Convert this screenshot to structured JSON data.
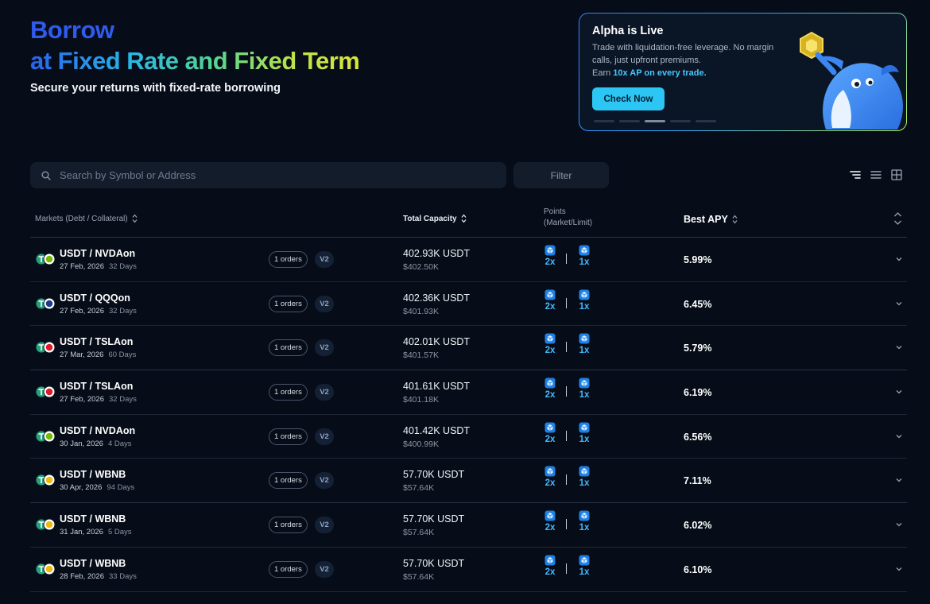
{
  "hero": {
    "title_line1": "Borrow",
    "title_line2": "at Fixed Rate and Fixed Term",
    "subtitle": "Secure your returns with fixed-rate borrowing"
  },
  "promo": {
    "title": "Alpha is Live",
    "text": "Trade with liquidation-free leverage. No margin calls, just upfront premiums.",
    "earn_prefix": "Earn ",
    "earn_highlight": "10x AP on every trade.",
    "button_label": "Check Now",
    "active_slide": 3,
    "slide_count": 5
  },
  "toolbar": {
    "search_placeholder": "Search by Symbol or Address",
    "filter_label": "Filter"
  },
  "table": {
    "headers": {
      "markets": "Markets (Debt / Collateral)",
      "capacity": "Total Capacity",
      "points_line1": "Points",
      "points_line2": "(Market/Limit)",
      "apy": "Best APY"
    },
    "rows": [
      {
        "pair": "USDT / NVDAon",
        "date": "27 Feb, 2026",
        "days": "32 Days",
        "orders": "1 orders",
        "version": "V2",
        "capacity": "402.93K USDT",
        "capacity_usd": "$402.50K",
        "points_market": "2x",
        "points_limit": "1x",
        "apy": "5.99%",
        "collateral_icon": "nvidia-icon",
        "collateral_color": "#76b900"
      },
      {
        "pair": "USDT / QQQon",
        "date": "27 Feb, 2026",
        "days": "32 Days",
        "orders": "1 orders",
        "version": "V2",
        "capacity": "402.36K USDT",
        "capacity_usd": "$401.93K",
        "points_market": "2x",
        "points_limit": "1x",
        "apy": "6.45%",
        "collateral_icon": "qqq-icon",
        "collateral_color": "#1f3a8a"
      },
      {
        "pair": "USDT / TSLAon",
        "date": "27 Mar, 2026",
        "days": "60 Days",
        "orders": "1 orders",
        "version": "V2",
        "capacity": "402.01K USDT",
        "capacity_usd": "$401.57K",
        "points_market": "2x",
        "points_limit": "1x",
        "apy": "5.79%",
        "collateral_icon": "tesla-icon",
        "collateral_color": "#d91e2a"
      },
      {
        "pair": "USDT / TSLAon",
        "date": "27 Feb, 2026",
        "days": "32 Days",
        "orders": "1 orders",
        "version": "V2",
        "capacity": "401.61K USDT",
        "capacity_usd": "$401.18K",
        "points_market": "2x",
        "points_limit": "1x",
        "apy": "6.19%",
        "collateral_icon": "tesla-icon",
        "collateral_color": "#d91e2a"
      },
      {
        "pair": "USDT / NVDAon",
        "date": "30 Jan, 2026",
        "days": "4 Days",
        "orders": "1 orders",
        "version": "V2",
        "capacity": "401.42K USDT",
        "capacity_usd": "$400.99K",
        "points_market": "2x",
        "points_limit": "1x",
        "apy": "6.56%",
        "collateral_icon": "nvidia-icon",
        "collateral_color": "#76b900"
      },
      {
        "pair": "USDT / WBNB",
        "date": "30 Apr, 2026",
        "days": "94 Days",
        "orders": "1 orders",
        "version": "V2",
        "capacity": "57.70K USDT",
        "capacity_usd": "$57.64K",
        "points_market": "2x",
        "points_limit": "1x",
        "apy": "7.11%",
        "collateral_icon": "bnb-icon",
        "collateral_color": "#f0b90b"
      },
      {
        "pair": "USDT / WBNB",
        "date": "31 Jan, 2026",
        "days": "5 Days",
        "orders": "1 orders",
        "version": "V2",
        "capacity": "57.70K USDT",
        "capacity_usd": "$57.64K",
        "points_market": "2x",
        "points_limit": "1x",
        "apy": "6.02%",
        "collateral_icon": "bnb-icon",
        "collateral_color": "#f0b90b"
      },
      {
        "pair": "USDT / WBNB",
        "date": "28 Feb, 2026",
        "days": "33 Days",
        "orders": "1 orders",
        "version": "V2",
        "capacity": "57.70K USDT",
        "capacity_usd": "$57.64K",
        "points_market": "2x",
        "points_limit": "1x",
        "apy": "6.10%",
        "collateral_icon": "bnb-icon",
        "collateral_color": "#f0b90b"
      }
    ]
  },
  "colors": {
    "background": "#070d18",
    "accent_cyan": "#2cc6f5",
    "points_blue": "#41b8ff",
    "usdt_green": "#26a17b"
  }
}
